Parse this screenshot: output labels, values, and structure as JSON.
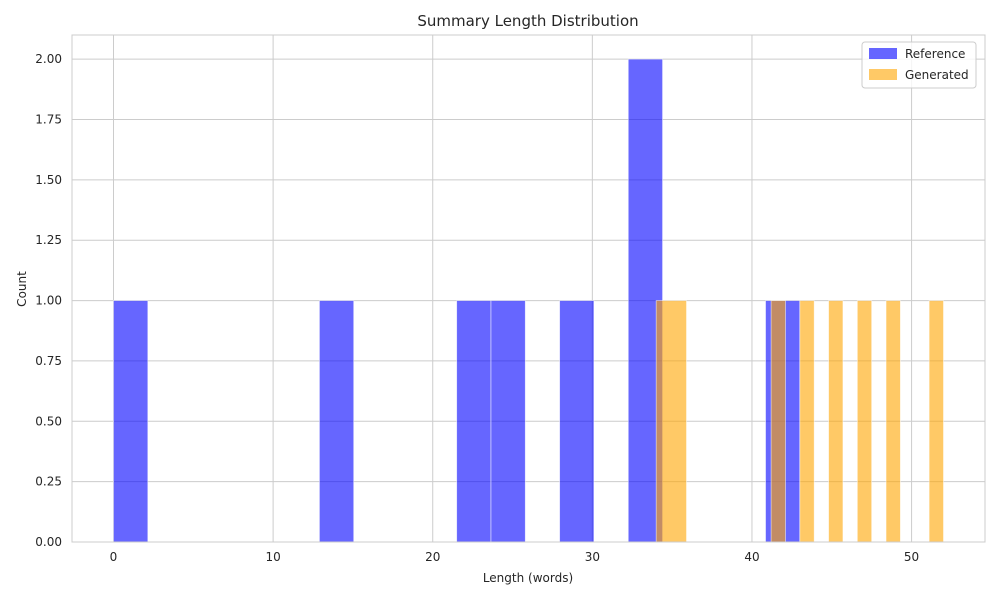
{
  "chart_data": {
    "type": "bar",
    "title": "Summary Length Distribution",
    "xlabel": "Length (words)",
    "ylabel": "Count",
    "xlim": [
      -2.6,
      54.6
    ],
    "ylim": [
      0,
      2.1
    ],
    "grid": true,
    "legend_position": "top-right",
    "x_ticks": [
      0,
      10,
      20,
      30,
      40,
      50
    ],
    "x_tick_labels": [
      "0",
      "10",
      "20",
      "30",
      "40",
      "50"
    ],
    "y_ticks": [
      0,
      0.25,
      0.5,
      0.75,
      1.0,
      1.25,
      1.5,
      1.75,
      2.0
    ],
    "y_tick_labels": [
      "0.00",
      "0.25",
      "0.50",
      "0.75",
      "1.00",
      "1.25",
      "1.50",
      "1.75",
      "2.00"
    ],
    "series": [
      {
        "name": "Reference",
        "color": "#0000ff",
        "opacity": 0.6,
        "bins": [
          {
            "x0": 0.0,
            "x1": 2.15,
            "count": 1
          },
          {
            "x0": 12.9,
            "x1": 15.05,
            "count": 1
          },
          {
            "x0": 21.5,
            "x1": 23.65,
            "count": 1
          },
          {
            "x0": 23.65,
            "x1": 25.8,
            "count": 1
          },
          {
            "x0": 27.95,
            "x1": 30.1,
            "count": 1
          },
          {
            "x0": 32.25,
            "x1": 34.4,
            "count": 2
          },
          {
            "x0": 40.85,
            "x1": 43.0,
            "count": 1
          }
        ]
      },
      {
        "name": "Generated",
        "color": "#ffa500",
        "opacity": 0.6,
        "bins": [
          {
            "x0": 34.0,
            "x1": 35.9,
            "count": 1
          },
          {
            "x0": 41.2,
            "x1": 42.1,
            "count": 1
          },
          {
            "x0": 43.0,
            "x1": 43.9,
            "count": 1
          },
          {
            "x0": 44.8,
            "x1": 45.7,
            "count": 1
          },
          {
            "x0": 46.6,
            "x1": 47.5,
            "count": 1
          },
          {
            "x0": 48.4,
            "x1": 49.3,
            "count": 1
          },
          {
            "x0": 51.1,
            "x1": 52.0,
            "count": 1
          }
        ]
      }
    ]
  }
}
